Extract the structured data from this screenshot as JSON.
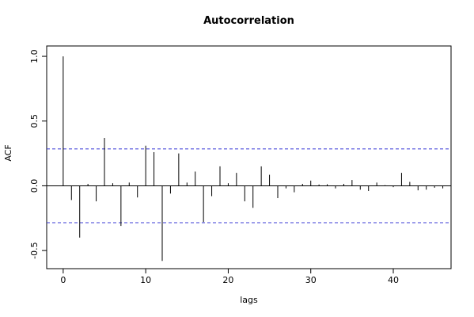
{
  "chart_data": {
    "type": "bar",
    "title": "Autocorrelation",
    "xlabel": "lags",
    "ylabel": "ACF",
    "xlim": [
      -2,
      47
    ],
    "ylim": [
      -0.64,
      1.08
    ],
    "xticks": [
      0,
      10,
      20,
      30,
      40
    ],
    "xtick_labels": [
      "0",
      "10",
      "20",
      "30",
      "40"
    ],
    "yticks": [
      -0.5,
      0.0,
      0.5,
      1.0
    ],
    "ytick_labels": [
      "-0.5",
      "0.0",
      "0.5",
      "1.0"
    ],
    "ci_upper": 0.285,
    "ci_lower": -0.285,
    "lags": [
      0,
      1,
      2,
      3,
      4,
      5,
      6,
      7,
      8,
      9,
      10,
      11,
      12,
      13,
      14,
      15,
      16,
      17,
      18,
      19,
      20,
      21,
      22,
      23,
      24,
      25,
      26,
      27,
      28,
      29,
      30,
      31,
      32,
      33,
      34,
      35,
      36,
      37,
      38,
      39,
      40,
      41,
      42,
      43,
      44,
      45,
      46
    ],
    "acf": [
      1.0,
      -0.11,
      -0.4,
      0.015,
      -0.12,
      0.37,
      0.02,
      -0.31,
      0.025,
      -0.09,
      0.31,
      0.26,
      -0.58,
      -0.06,
      0.25,
      0.025,
      0.11,
      -0.28,
      -0.08,
      0.15,
      0.02,
      0.1,
      -0.12,
      -0.17,
      0.15,
      0.085,
      -0.095,
      -0.02,
      -0.05,
      0.015,
      0.04,
      0.01,
      0.012,
      -0.02,
      0.015,
      0.045,
      -0.03,
      -0.04,
      0.025,
      0.005,
      -0.01,
      0.1,
      0.03,
      -0.035,
      -0.03,
      -0.015,
      -0.02
    ],
    "colors": {
      "bars": "#000000",
      "ci_line": "#3b3bd6",
      "zero_line": "#000000"
    }
  }
}
